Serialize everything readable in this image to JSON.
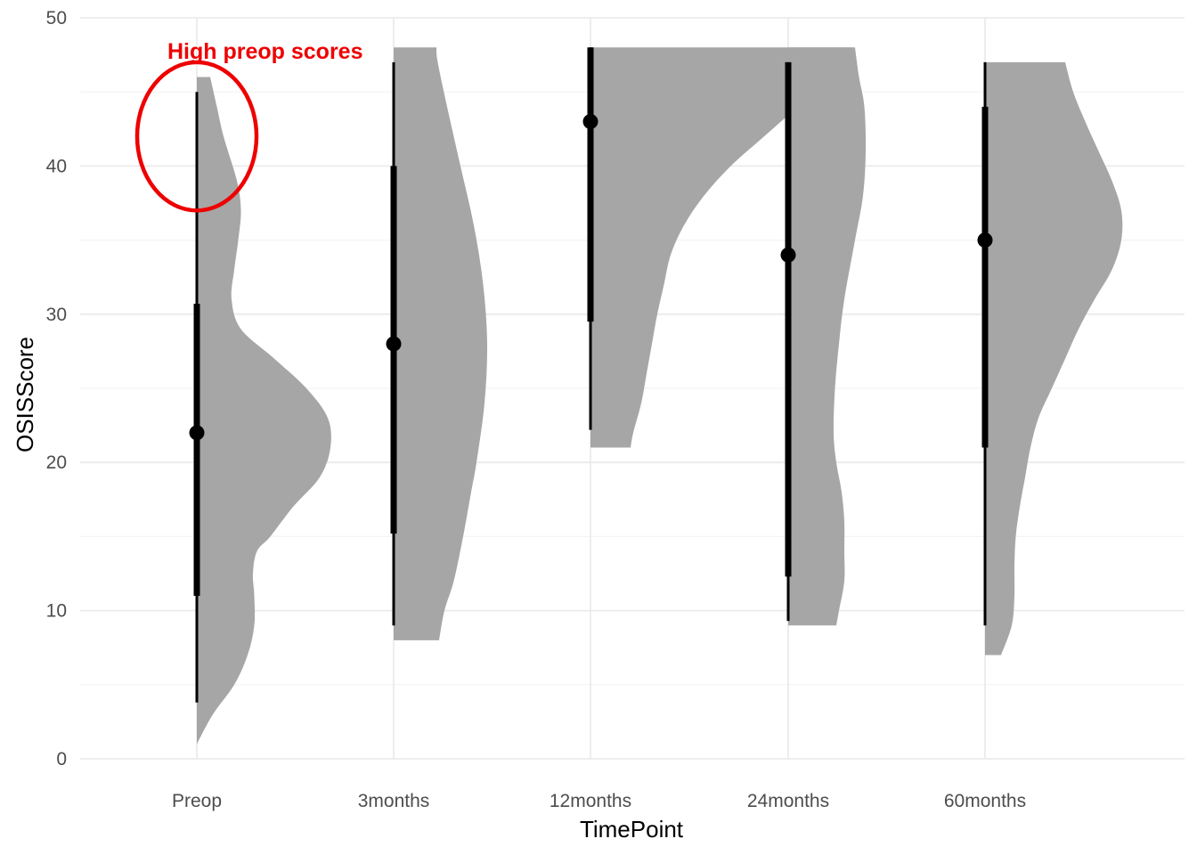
{
  "chart_data": {
    "type": "half-violin with pointinterval",
    "xlabel": "TimePoint",
    "ylabel": "OSISScore",
    "categories": [
      "Preop",
      "3months",
      "12months",
      "24months",
      "60months"
    ],
    "ylim": [
      0,
      50
    ],
    "yticks": [
      0,
      10,
      20,
      30,
      40,
      50
    ],
    "grid": true,
    "legend": "none",
    "colors": {
      "violin": "#a6a6a6",
      "interval": "#000000",
      "annotation": "#ee0000",
      "grid_major": "#ebebeb",
      "grid_minor": "#f4f4f4"
    },
    "series": [
      {
        "category": "Preop",
        "median": 22,
        "q_low": 11,
        "q_high": 30.7,
        "whisker_low": 3.8,
        "whisker_high": 45,
        "min": 1,
        "max": 46,
        "density_profile": [
          [
            1,
            0.0
          ],
          [
            3,
            0.12
          ],
          [
            5,
            0.28
          ],
          [
            7,
            0.38
          ],
          [
            9,
            0.43
          ],
          [
            11,
            0.43
          ],
          [
            12.5,
            0.42
          ],
          [
            14,
            0.45
          ],
          [
            15,
            0.55
          ],
          [
            17,
            0.72
          ],
          [
            19,
            0.92
          ],
          [
            21,
            1.0
          ],
          [
            23,
            0.98
          ],
          [
            25,
            0.82
          ],
          [
            27,
            0.58
          ],
          [
            29,
            0.33
          ],
          [
            31,
            0.26
          ],
          [
            33,
            0.28
          ],
          [
            35,
            0.31
          ],
          [
            37,
            0.33
          ],
          [
            39,
            0.3
          ],
          [
            42,
            0.2
          ],
          [
            44,
            0.15
          ],
          [
            46,
            0.1
          ]
        ]
      },
      {
        "category": "3months",
        "median": 28,
        "q_low": 15.2,
        "q_high": 40,
        "whisker_low": 9,
        "whisker_high": 47,
        "min": 8,
        "max": 48,
        "density_profile": [
          [
            8,
            0.34
          ],
          [
            10,
            0.38
          ],
          [
            12,
            0.45
          ],
          [
            15,
            0.52
          ],
          [
            18,
            0.58
          ],
          [
            20,
            0.62
          ],
          [
            24,
            0.68
          ],
          [
            28,
            0.7
          ],
          [
            32,
            0.67
          ],
          [
            36,
            0.6
          ],
          [
            40,
            0.5
          ],
          [
            44,
            0.4
          ],
          [
            47,
            0.33
          ],
          [
            48,
            0.32
          ]
        ]
      },
      {
        "category": "12months",
        "median": 43,
        "q_low": 29.5,
        "q_high": 48,
        "whisker_low": 22.2,
        "whisker_high": 48,
        "min": 21,
        "max": 48,
        "density_profile": [
          [
            21,
            0.3
          ],
          [
            22,
            0.32
          ],
          [
            24,
            0.38
          ],
          [
            26,
            0.42
          ],
          [
            28,
            0.46
          ],
          [
            30,
            0.5
          ],
          [
            32,
            0.55
          ],
          [
            34,
            0.6
          ],
          [
            36,
            0.7
          ],
          [
            38,
            0.85
          ],
          [
            40,
            1.05
          ],
          [
            42,
            1.3
          ],
          [
            44,
            1.55
          ],
          [
            46,
            1.78
          ],
          [
            47.5,
            1.95
          ],
          [
            48,
            1.96
          ]
        ]
      },
      {
        "category": "24months",
        "median": 34,
        "q_low": 12.3,
        "q_high": 47,
        "whisker_low": 9.3,
        "whisker_high": 47,
        "min": 9,
        "max": 48,
        "density_profile": [
          [
            9,
            0.36
          ],
          [
            10,
            0.38
          ],
          [
            12,
            0.42
          ],
          [
            14,
            0.42
          ],
          [
            16,
            0.42
          ],
          [
            18,
            0.4
          ],
          [
            20,
            0.36
          ],
          [
            22,
            0.34
          ],
          [
            25,
            0.35
          ],
          [
            28,
            0.38
          ],
          [
            31,
            0.42
          ],
          [
            35,
            0.5
          ],
          [
            38,
            0.56
          ],
          [
            41,
            0.58
          ],
          [
            44,
            0.57
          ],
          [
            46,
            0.53
          ],
          [
            48,
            0.5
          ]
        ]
      },
      {
        "category": "60months",
        "median": 35,
        "q_low": 21,
        "q_high": 44,
        "whisker_low": 9,
        "whisker_high": 47,
        "min": 7,
        "max": 47,
        "density_profile": [
          [
            7,
            0.12
          ],
          [
            9,
            0.2
          ],
          [
            11,
            0.22
          ],
          [
            13,
            0.22
          ],
          [
            15,
            0.23
          ],
          [
            17,
            0.26
          ],
          [
            19,
            0.3
          ],
          [
            21,
            0.34
          ],
          [
            23,
            0.4
          ],
          [
            25,
            0.5
          ],
          [
            27,
            0.6
          ],
          [
            29,
            0.7
          ],
          [
            31,
            0.82
          ],
          [
            33,
            0.95
          ],
          [
            35,
            1.02
          ],
          [
            37,
            1.02
          ],
          [
            39,
            0.95
          ],
          [
            41,
            0.85
          ],
          [
            43,
            0.75
          ],
          [
            45,
            0.66
          ],
          [
            47,
            0.6
          ]
        ]
      }
    ],
    "annotations": [
      {
        "text": "High preop scores",
        "category": "Preop",
        "center_y": 42,
        "y_halfspan": 5
      }
    ]
  }
}
